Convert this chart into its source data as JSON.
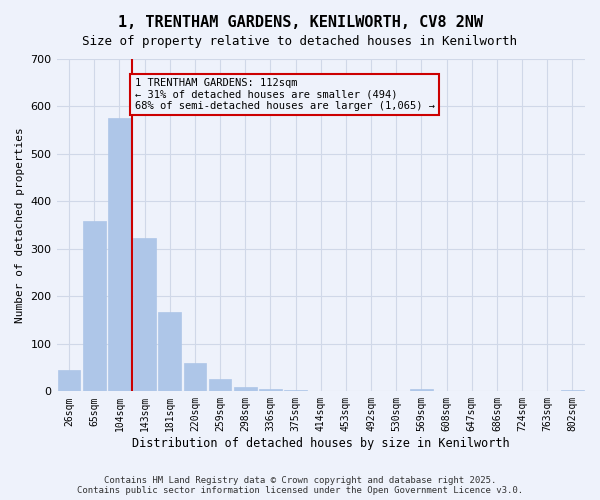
{
  "title": "1, TRENTHAM GARDENS, KENILWORTH, CV8 2NW",
  "subtitle": "Size of property relative to detached houses in Kenilworth",
  "xlabel": "Distribution of detached houses by size in Kenilworth",
  "ylabel": "Number of detached properties",
  "footer": "Contains HM Land Registry data © Crown copyright and database right 2025.\nContains public sector information licensed under the Open Government Licence v3.0.",
  "categories": [
    "26sqm",
    "65sqm",
    "104sqm",
    "143sqm",
    "181sqm",
    "220sqm",
    "259sqm",
    "298sqm",
    "336sqm",
    "375sqm",
    "414sqm",
    "453sqm",
    "492sqm",
    "530sqm",
    "569sqm",
    "608sqm",
    "647sqm",
    "686sqm",
    "724sqm",
    "763sqm",
    "802sqm"
  ],
  "values": [
    45,
    358,
    575,
    322,
    168,
    60,
    25,
    10,
    5,
    2,
    0,
    0,
    0,
    0,
    5,
    0,
    0,
    0,
    0,
    0,
    3
  ],
  "bar_color": "#aec6e8",
  "bar_edge_color": "#aec6e8",
  "grid_color": "#d0d8e8",
  "bg_color": "#eef2fb",
  "property_line_x": 2,
  "property_line_color": "#cc0000",
  "annotation_text": "1 TRENTHAM GARDENS: 112sqm\n← 31% of detached houses are smaller (494)\n68% of semi-detached houses are larger (1,065) →",
  "annotation_box_color": "#cc0000",
  "ylim": [
    0,
    700
  ],
  "yticks": [
    0,
    100,
    200,
    300,
    400,
    500,
    600,
    700
  ]
}
